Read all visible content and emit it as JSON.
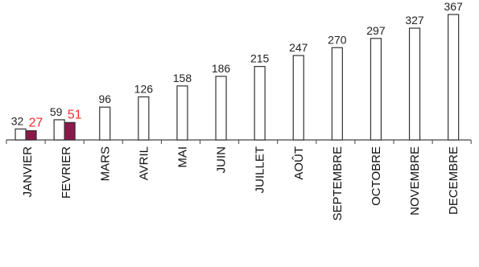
{
  "chart_data": {
    "type": "bar",
    "categories": [
      "JANVIER",
      "FEVRIER",
      "MARS",
      "AVRIL",
      "MAI",
      "JUIN",
      "JUILLET",
      "AOÛT",
      "SEPTEMBRE",
      "OCTOBRE",
      "NOVEMBRE",
      "DECEMBRE"
    ],
    "series": [
      {
        "values": [
          32,
          59,
          96,
          126,
          158,
          186,
          215,
          247,
          270,
          297,
          327,
          367
        ],
        "color": "#ffffff",
        "label_color": "#222222"
      },
      {
        "values": [
          27,
          51,
          null,
          null,
          null,
          null,
          null,
          null,
          null,
          null,
          null,
          null
        ],
        "color": "#8b1a4a",
        "label_color": "#ff2a2a"
      }
    ],
    "title": "",
    "xlabel": "",
    "ylabel": "",
    "ylim": [
      0,
      400
    ],
    "grid": false,
    "legend": "none"
  }
}
